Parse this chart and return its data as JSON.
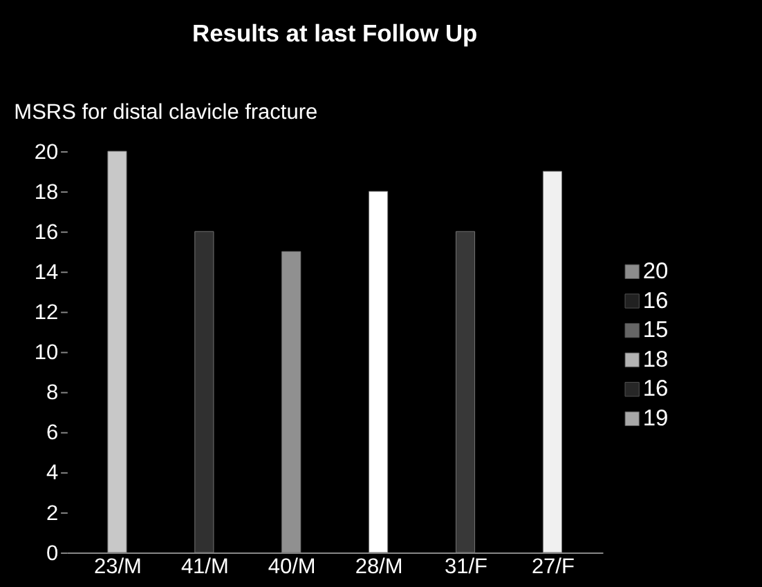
{
  "chart_data": {
    "type": "bar",
    "title": "Results at last Follow Up",
    "ylabel": "MSRS for distal clavicle fracture",
    "categories": [
      "23/M",
      "41/M",
      "40/M",
      "28/M",
      "31/F",
      "27/F"
    ],
    "series": [
      {
        "name": "20",
        "color": "#c8c8c8",
        "values": [
          20,
          null,
          null,
          null,
          null,
          null
        ]
      },
      {
        "name": "16",
        "color": "#303030",
        "values": [
          null,
          16,
          null,
          null,
          null,
          null
        ]
      },
      {
        "name": "15",
        "color": "#909090",
        "values": [
          null,
          null,
          15,
          null,
          null,
          null
        ]
      },
      {
        "name": "18",
        "color": "#ffffff",
        "values": [
          null,
          null,
          null,
          18,
          null,
          null
        ]
      },
      {
        "name": "16",
        "color": "#383838",
        "values": [
          null,
          null,
          null,
          null,
          16,
          null
        ]
      },
      {
        "name": "19",
        "color": "#f0f0f0",
        "values": [
          null,
          null,
          null,
          null,
          null,
          19
        ]
      }
    ],
    "ylim": [
      0,
      20
    ],
    "yticks": [
      0,
      2,
      4,
      6,
      8,
      10,
      12,
      14,
      16,
      18,
      20
    ],
    "grid": false,
    "legend": "right"
  }
}
